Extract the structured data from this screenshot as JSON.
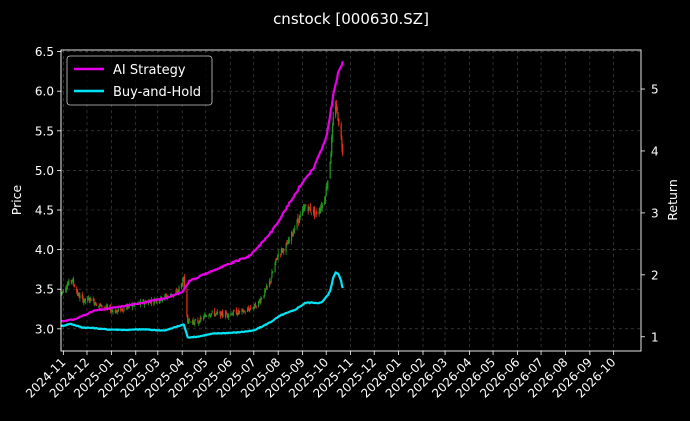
{
  "chart_data": {
    "type": "line",
    "title": "cnstock [000630.SZ]",
    "ylabel": "Price",
    "y2label": "Return",
    "ylim": [
      2.72,
      6.52
    ],
    "y2lim": [
      0.77,
      5.63
    ],
    "yticks": [
      3.0,
      3.5,
      4.0,
      4.5,
      5.0,
      5.5,
      6.0,
      6.5
    ],
    "y2ticks": [
      1,
      2,
      3,
      4,
      5
    ],
    "xlim": [
      "2024-10-29",
      "2026-11-05"
    ],
    "x_tick_labels": [
      "2024-11",
      "2024-12",
      "2025-01",
      "2025-02",
      "2025-03",
      "2025-04",
      "2025-05",
      "2025-06",
      "2025-07",
      "2025-08",
      "2025-09",
      "2025-10",
      "2025-11",
      "2025-12",
      "2026-01",
      "2026-02",
      "2026-03",
      "2026-04",
      "2026-05",
      "2026-06",
      "2026-07",
      "2026-08",
      "2026-09",
      "2026-10"
    ],
    "x_tick_dates": [
      "2024-11-01",
      "2024-12-01",
      "2025-01-01",
      "2025-02-01",
      "2025-03-01",
      "2025-04-01",
      "2025-05-01",
      "2025-06-01",
      "2025-07-01",
      "2025-08-01",
      "2025-09-01",
      "2025-10-01",
      "2025-11-01",
      "2025-12-01",
      "2026-01-01",
      "2026-02-01",
      "2026-03-01",
      "2026-04-01",
      "2026-05-01",
      "2026-06-01",
      "2026-07-01",
      "2026-08-01",
      "2026-09-01",
      "2026-10-01"
    ],
    "grid": true,
    "legend_position": "top-left",
    "candlestick": {
      "name": "Price",
      "up_color": "#1f9a1f",
      "down_color": "#e8321e",
      "close_anchors": [
        [
          "2024-10-29",
          3.45
        ],
        [
          "2024-11-05",
          3.55
        ],
        [
          "2024-11-12",
          3.62
        ],
        [
          "2024-11-20",
          3.42
        ],
        [
          "2024-11-28",
          3.35
        ],
        [
          "2024-12-06",
          3.38
        ],
        [
          "2024-12-15",
          3.3
        ],
        [
          "2024-12-25",
          3.26
        ],
        [
          "2025-01-08",
          3.22
        ],
        [
          "2025-01-22",
          3.28
        ],
        [
          "2025-02-10",
          3.33
        ],
        [
          "2025-02-25",
          3.36
        ],
        [
          "2025-03-10",
          3.4
        ],
        [
          "2025-03-25",
          3.45
        ],
        [
          "2025-04-03",
          3.62
        ],
        [
          "2025-04-08",
          3.1
        ],
        [
          "2025-04-20",
          3.08
        ],
        [
          "2025-05-05",
          3.2
        ],
        [
          "2025-05-20",
          3.18
        ],
        [
          "2025-06-05",
          3.2
        ],
        [
          "2025-06-20",
          3.22
        ],
        [
          "2025-07-05",
          3.3
        ],
        [
          "2025-07-20",
          3.55
        ],
        [
          "2025-08-01",
          3.95
        ],
        [
          "2025-08-12",
          4.05
        ],
        [
          "2025-08-25",
          4.35
        ],
        [
          "2025-09-05",
          4.55
        ],
        [
          "2025-09-18",
          4.45
        ],
        [
          "2025-09-28",
          4.6
        ],
        [
          "2025-10-05",
          5.0
        ],
        [
          "2025-10-12",
          5.9
        ],
        [
          "2025-10-18",
          5.55
        ],
        [
          "2025-10-22",
          5.25
        ]
      ]
    },
    "series": [
      {
        "name": "AI Strategy",
        "color": "#e600e6",
        "axis": "right",
        "points": [
          [
            "2024-10-29",
            1.25
          ],
          [
            "2024-11-15",
            1.28
          ],
          [
            "2024-12-10",
            1.42
          ],
          [
            "2025-01-10",
            1.48
          ],
          [
            "2025-02-10",
            1.55
          ],
          [
            "2025-03-10",
            1.62
          ],
          [
            "2025-04-01",
            1.72
          ],
          [
            "2025-04-10",
            1.9
          ],
          [
            "2025-05-01",
            2.02
          ],
          [
            "2025-06-01",
            2.18
          ],
          [
            "2025-06-25",
            2.3
          ],
          [
            "2025-07-10",
            2.5
          ],
          [
            "2025-07-25",
            2.72
          ],
          [
            "2025-08-15",
            3.15
          ],
          [
            "2025-09-01",
            3.5
          ],
          [
            "2025-09-15",
            3.72
          ],
          [
            "2025-10-01",
            4.2
          ],
          [
            "2025-10-10",
            4.9
          ],
          [
            "2025-10-18",
            5.35
          ],
          [
            "2025-10-22",
            5.42
          ]
        ]
      },
      {
        "name": "Buy-and-Hold",
        "color": "#00e5f5",
        "axis": "right",
        "points": [
          [
            "2024-10-29",
            1.17
          ],
          [
            "2024-11-10",
            1.21
          ],
          [
            "2024-11-25",
            1.15
          ],
          [
            "2024-12-10",
            1.14
          ],
          [
            "2024-12-25",
            1.12
          ],
          [
            "2025-01-20",
            1.11
          ],
          [
            "2025-02-10",
            1.12
          ],
          [
            "2025-03-10",
            1.1
          ],
          [
            "2025-04-03",
            1.2
          ],
          [
            "2025-04-08",
            0.99
          ],
          [
            "2025-04-20",
            1.0
          ],
          [
            "2025-05-10",
            1.05
          ],
          [
            "2025-06-10",
            1.07
          ],
          [
            "2025-07-01",
            1.1
          ],
          [
            "2025-07-20",
            1.22
          ],
          [
            "2025-08-05",
            1.35
          ],
          [
            "2025-08-20",
            1.42
          ],
          [
            "2025-09-05",
            1.55
          ],
          [
            "2025-09-25",
            1.55
          ],
          [
            "2025-10-05",
            1.7
          ],
          [
            "2025-10-12",
            2.05
          ],
          [
            "2025-10-18",
            2.0
          ],
          [
            "2025-10-22",
            1.78
          ]
        ]
      }
    ]
  }
}
